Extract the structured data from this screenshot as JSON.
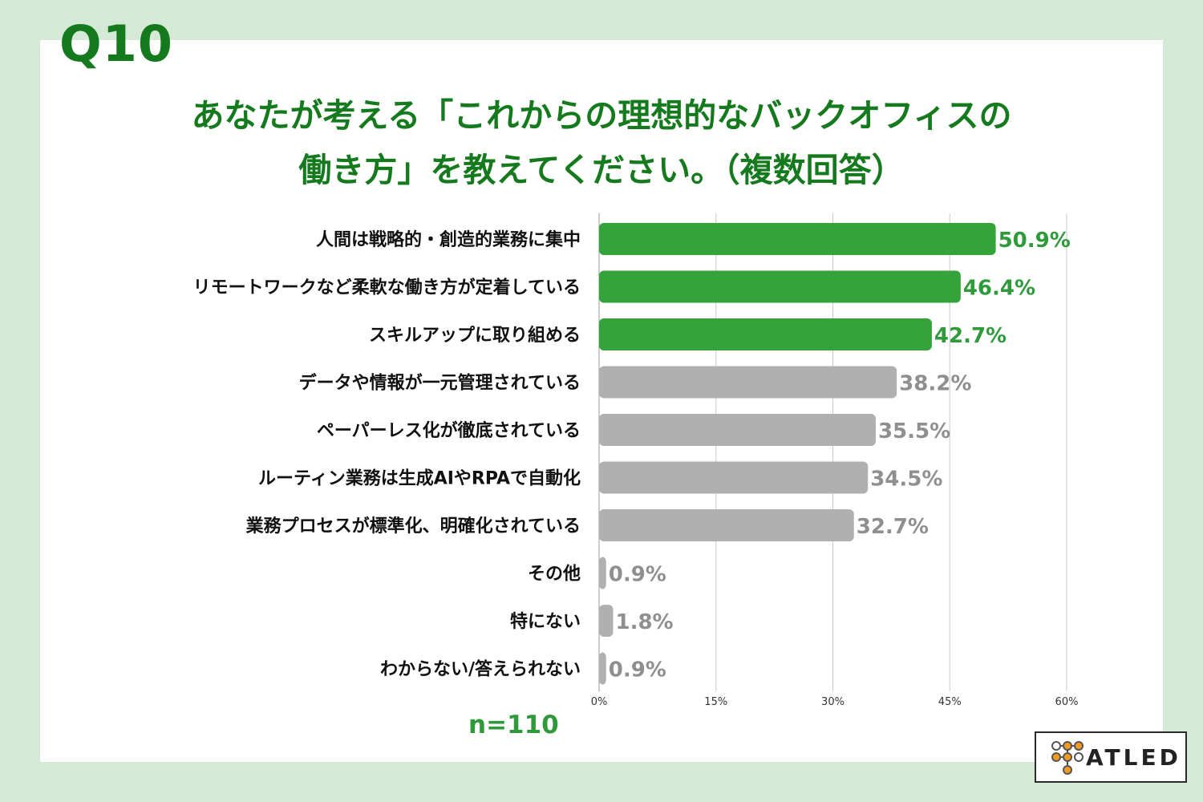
{
  "question": "Q10",
  "title_lines": [
    "あなたが考える「これからの理想的なバックオフィスの",
    "働き方」を教えてください。（複数回答）"
  ],
  "sample_size": "n=110",
  "logo_text": "ATLED",
  "colors": {
    "background": "#d5ead6",
    "title": "#157a1d",
    "highlight_bar": "#33a33a",
    "other_bar": "#b0b0b0",
    "highlight_label": "#2f9a3a",
    "other_label": "#8f8f8f",
    "gridline": "#c8c8c8",
    "logo_orange": "#f29a1f"
  },
  "chart_data": {
    "type": "bar",
    "orientation": "horizontal",
    "categories": [
      "人間は戦略的・創造的業務に集中",
      "リモートワークなど柔軟な働き方が定着している",
      "スキルアップに取り組める",
      "データや情報が一元管理されている",
      "ペーパーレス化が徹底されている",
      "ルーティン業務は生成AIやRPAで自動化",
      "業務プロセスが標準化、明確化されている",
      "その他",
      "特にない",
      "わからない/答えられない"
    ],
    "values": [
      50.9,
      46.4,
      42.7,
      38.2,
      35.5,
      34.5,
      32.7,
      0.9,
      1.8,
      0.9
    ],
    "value_labels": [
      "50.9%",
      "46.4%",
      "42.7%",
      "38.2%",
      "35.5%",
      "34.5%",
      "32.7%",
      "0.9%",
      "1.8%",
      "0.9%"
    ],
    "highlighted": [
      true,
      true,
      true,
      false,
      false,
      false,
      false,
      false,
      false,
      false
    ],
    "xlim": [
      0,
      60
    ],
    "ticks": [
      0,
      15,
      30,
      45,
      60
    ],
    "tick_labels": [
      "0%",
      "15%",
      "30%",
      "45%",
      "60%"
    ],
    "grid": true
  }
}
